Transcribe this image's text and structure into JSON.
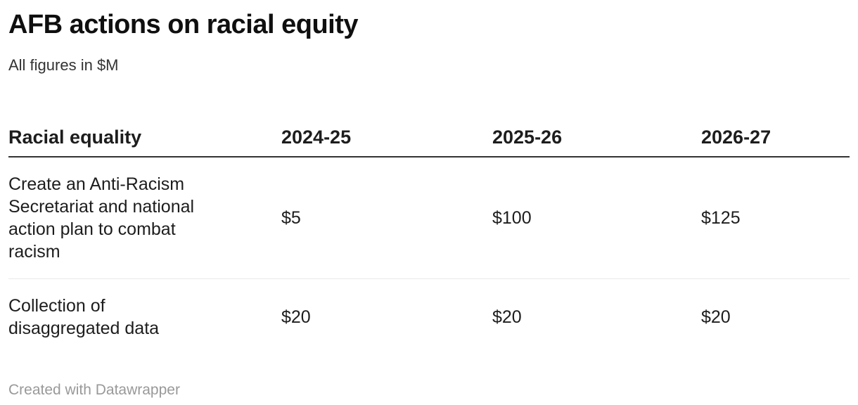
{
  "chart_data": {
    "type": "table",
    "title": "AFB actions on racial equity",
    "subtitle": "All figures in $M",
    "unit": "$M",
    "columns": [
      "Racial equality",
      "2024-25",
      "2025-26",
      "2026-27"
    ],
    "rows": [
      {
        "label": "Create an Anti-Racism Secretariat and national action plan to combat racism",
        "values": [
          "$5",
          "$100",
          "$125"
        ],
        "values_numeric": [
          5,
          100,
          125
        ]
      },
      {
        "label": "Collection of disaggregated data",
        "values": [
          "$20",
          "$20",
          "$20"
        ],
        "values_numeric": [
          20,
          20,
          20
        ]
      }
    ],
    "layout": {
      "header_rule": true,
      "row_dividers": true,
      "value_alignment": "left",
      "legend_position": "none",
      "grid": "off"
    }
  },
  "footer": {
    "attribution": "Created with Datawrapper"
  },
  "colors": {
    "background": "#ffffff",
    "title_text": "#0f0f0f",
    "subtitle_text": "#333333",
    "body_text": "#1d1d1d",
    "header_rule": "#333333",
    "row_divider": "#e8e8e8",
    "attribution_text": "#999999"
  }
}
